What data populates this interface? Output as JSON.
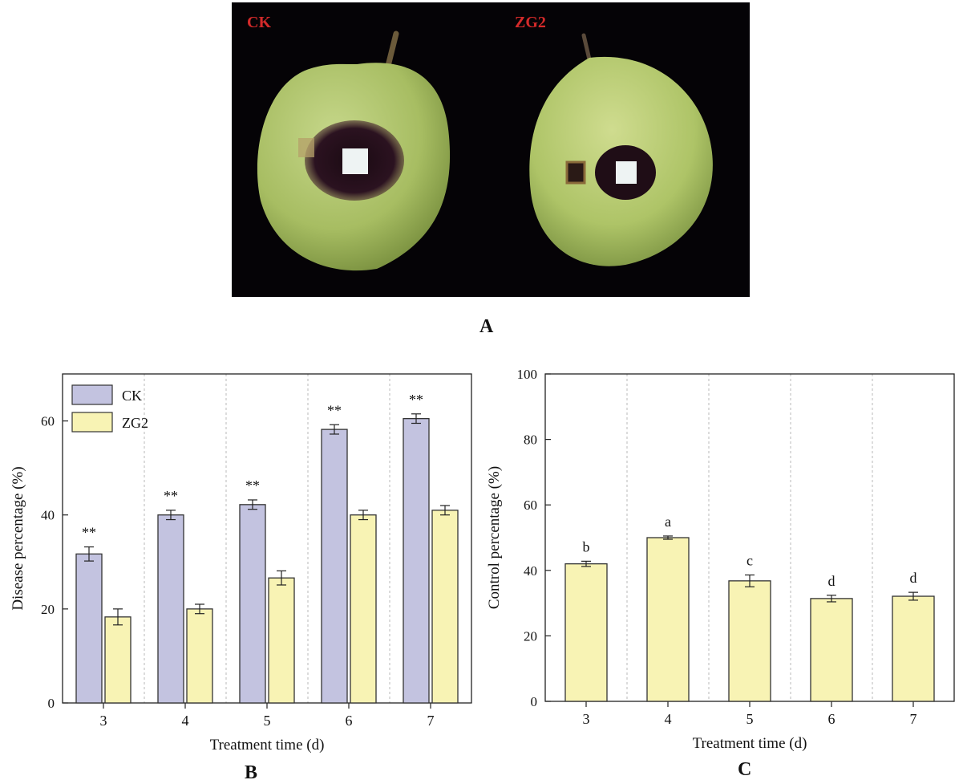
{
  "panels": {
    "a": "A",
    "b": "B",
    "c": "C"
  },
  "photo": {
    "label_left": "CK",
    "label_right": "ZG2",
    "label_color": "#d42a2a"
  },
  "colors": {
    "ck": "#c3c3e0",
    "zg2": "#f8f3b4",
    "bar_stroke": "#333333"
  },
  "chart_data": [
    {
      "type": "bar",
      "categories": [
        "3",
        "4",
        "5",
        "6",
        "7"
      ],
      "series": [
        {
          "name": "CK",
          "values": [
            31.7,
            40.0,
            42.2,
            58.2,
            60.5
          ],
          "errors": [
            1.5,
            1.0,
            1.0,
            1.0,
            1.0
          ]
        },
        {
          "name": "ZG2",
          "values": [
            18.3,
            20.0,
            26.6,
            40.0,
            41.0
          ],
          "errors": [
            1.7,
            1.0,
            1.5,
            1.0,
            1.0
          ]
        }
      ],
      "annotations": [
        "**",
        "**",
        "**",
        "**",
        "**"
      ],
      "xlabel": "Treatment time (d)",
      "ylabel": "Disease percentage (%)",
      "ylim": [
        0,
        70
      ],
      "yticks": [
        0,
        20,
        40,
        60
      ],
      "legend": "top-left",
      "grid": "vertical dashed separators"
    },
    {
      "type": "bar",
      "categories": [
        "3",
        "4",
        "5",
        "6",
        "7"
      ],
      "values": [
        42.0,
        50.0,
        36.8,
        31.4,
        32.1
      ],
      "errors": [
        0.8,
        0.5,
        1.8,
        1.0,
        1.2
      ],
      "annotations": [
        "b",
        "a",
        "c",
        "d",
        "d"
      ],
      "xlabel": "Treatment time (d)",
      "ylabel": "Control percentage (%)",
      "ylim": [
        0,
        100
      ],
      "yticks": [
        0,
        20,
        40,
        60,
        80,
        100
      ],
      "grid": "vertical dashed separators"
    }
  ]
}
